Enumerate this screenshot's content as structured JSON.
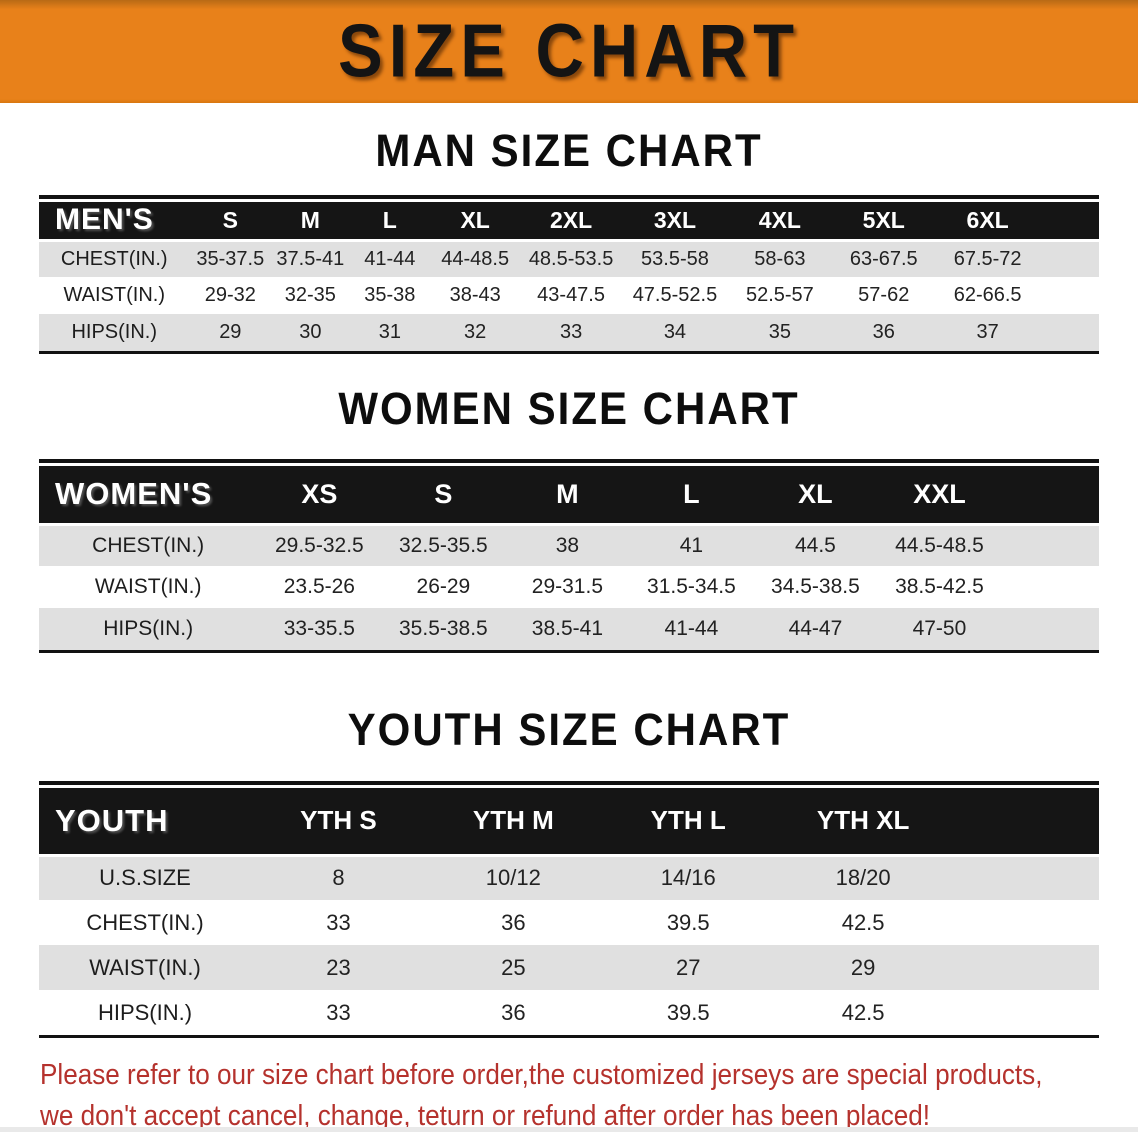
{
  "banner": {
    "title": "SIZE CHART"
  },
  "sections": [
    {
      "title": "MAN SIZE CHART",
      "corner_label": "MEN'S",
      "columns": [
        "S",
        "M",
        "L",
        "XL",
        "2XL",
        "3XL",
        "4XL",
        "5XL",
        "6XL"
      ],
      "rows": [
        {
          "label": "CHEST(IN.)",
          "values": [
            "35-37.5",
            "37.5-41",
            "41-44",
            "44-48.5",
            "48.5-53.5",
            "53.5-58",
            "58-63",
            "63-67.5",
            "67.5-72"
          ]
        },
        {
          "label": "WAIST(IN.)",
          "values": [
            "29-32",
            "32-35",
            "35-38",
            "38-43",
            "43-47.5",
            "47.5-52.5",
            "52.5-57",
            "57-62",
            "62-66.5"
          ]
        },
        {
          "label": "HIPS(IN.)",
          "values": [
            "29",
            "30",
            "31",
            "32",
            "33",
            "34",
            "35",
            "36",
            "37"
          ]
        }
      ]
    },
    {
      "title": "WOMEN SIZE CHART",
      "corner_label": "WOMEN'S",
      "columns": [
        "XS",
        "S",
        "M",
        "L",
        "XL",
        "XXL"
      ],
      "rows": [
        {
          "label": "CHEST(IN.)",
          "values": [
            "29.5-32.5",
            "32.5-35.5",
            "38",
            "41",
            "44.5",
            "44.5-48.5"
          ]
        },
        {
          "label": "WAIST(IN.)",
          "values": [
            "23.5-26",
            "26-29",
            "29-31.5",
            "31.5-34.5",
            "34.5-38.5",
            "38.5-42.5"
          ]
        },
        {
          "label": "HIPS(IN.)",
          "values": [
            "33-35.5",
            "35.5-38.5",
            "38.5-41",
            "41-44",
            "44-47",
            "47-50"
          ]
        }
      ]
    },
    {
      "title": "YOUTH SIZE CHART",
      "corner_label": "YOUTH",
      "columns": [
        "YTH S",
        "YTH M",
        "YTH L",
        "YTH XL"
      ],
      "rows": [
        {
          "label": "U.S.SIZE",
          "values": [
            "8",
            "10/12",
            "14/16",
            "18/20"
          ]
        },
        {
          "label": "CHEST(IN.)",
          "values": [
            "33",
            "36",
            "39.5",
            "42.5"
          ]
        },
        {
          "label": "WAIST(IN.)",
          "values": [
            "23",
            "25",
            "27",
            "29"
          ]
        },
        {
          "label": "HIPS(IN.)",
          "values": [
            "33",
            "36",
            "39.5",
            "42.5"
          ]
        }
      ]
    }
  ],
  "disclaimer": {
    "line1": "Please refer to our size chart before order,the customized jerseys are special products,",
    "line2": "we don't accept cancel, change, teturn or refund after order has been placed!"
  },
  "colors": {
    "banner_orange": "#E8811A",
    "header_black": "#151515",
    "stripe_gray": "#E0E0E0",
    "disclaimer_red": "#B5322D"
  }
}
